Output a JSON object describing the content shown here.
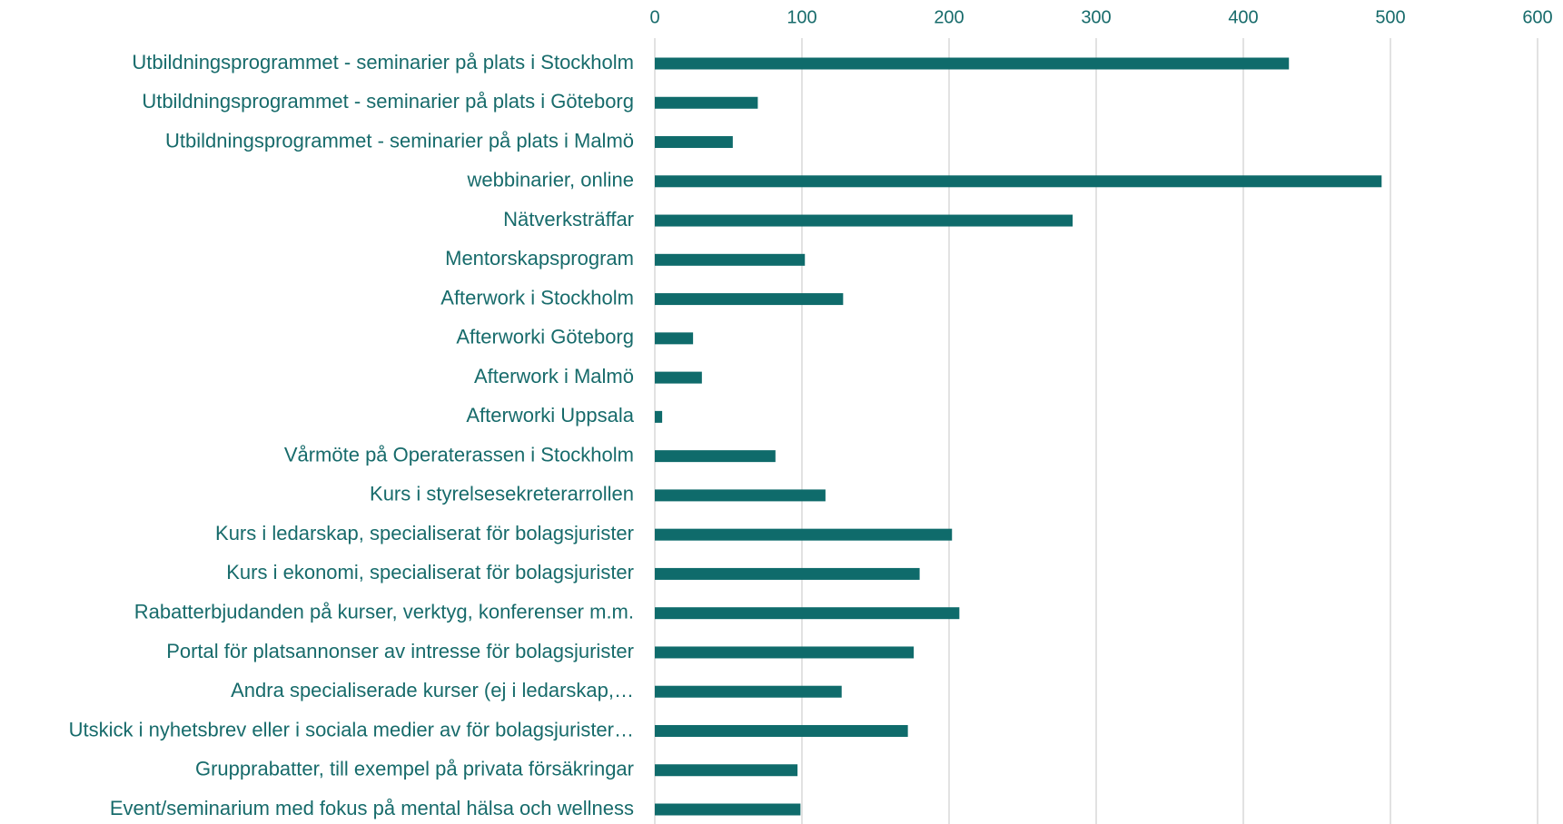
{
  "chart_data": {
    "type": "bar",
    "orientation": "horizontal",
    "categories": [
      "Utbildningsprogrammet - seminarier på plats i Stockholm",
      "Utbildningsprogrammet - seminarier på plats i Göteborg",
      "Utbildningsprogrammet - seminarier på plats i Malmö",
      "webbinarier, online",
      "Nätverksträffar",
      "Mentorskapsprogram",
      "Afterwork i Stockholm",
      "Afterworki Göteborg",
      "Afterwork i Malmö",
      "Afterworki Uppsala",
      "Vårmöte på Operaterassen i Stockholm",
      "Kurs i styrelsesekreterarrollen",
      "Kurs i ledarskap, specialiserat för bolagsjurister",
      "Kurs i ekonomi, specialiserat för bolagsjurister",
      "Rabatterbjudanden på kurser, verktyg, konferenser m.m.",
      "Portal för platsannonser av intresse för bolagsjurister",
      "Andra specialiserade kurser (ej i ledarskap,…",
      "Utskick i nyhetsbrev eller i sociala medier av för bolagsjurister…",
      "Grupprabatter, till exempel på privata försäkringar",
      "Event/seminarium med fokus på mental hälsa och wellness"
    ],
    "values": [
      431,
      70,
      53,
      494,
      284,
      102,
      128,
      26,
      32,
      5,
      82,
      116,
      202,
      180,
      207,
      176,
      127,
      172,
      97,
      99
    ],
    "color": "#0f6b6b",
    "xlim": [
      0,
      600
    ],
    "xticks": [
      0,
      100,
      200,
      300,
      400,
      500,
      600
    ],
    "grid": true
  }
}
